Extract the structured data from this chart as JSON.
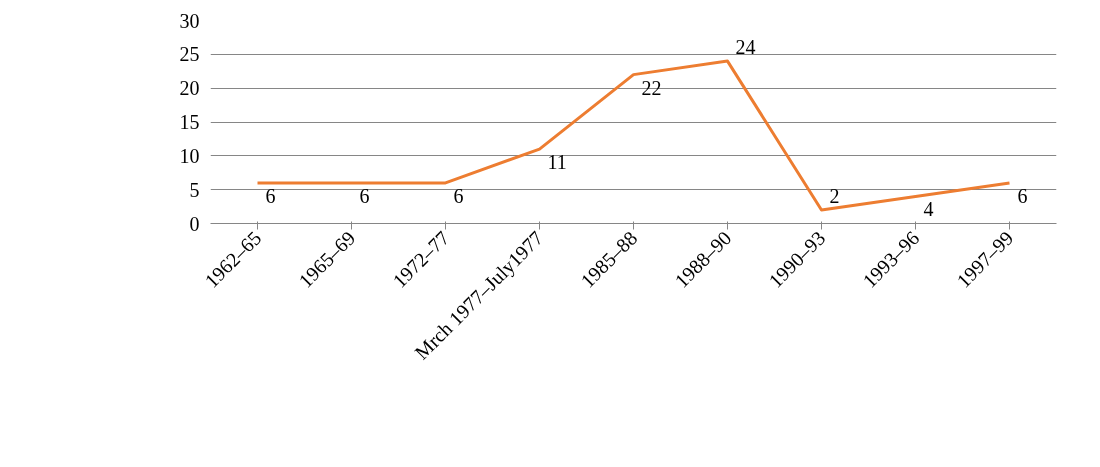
{
  "chart_data": {
    "type": "line",
    "categories": [
      "1962–65",
      "1965–69",
      "1972–77",
      "Mrch 1977–July1977",
      "1985–88",
      "1988–90",
      "1990–93",
      "1993–96",
      "1997–99"
    ],
    "series": [
      {
        "color": "#ed7d31",
        "values": [
          6,
          6,
          6,
          11,
          22,
          24,
          2,
          4,
          6
        ]
      }
    ],
    "ylim": [
      0,
      30
    ],
    "yticks": [
      0,
      5,
      10,
      15,
      20,
      25,
      30
    ],
    "grid": "y",
    "data_labels": true,
    "marker": "none",
    "line_style": "solid"
  }
}
